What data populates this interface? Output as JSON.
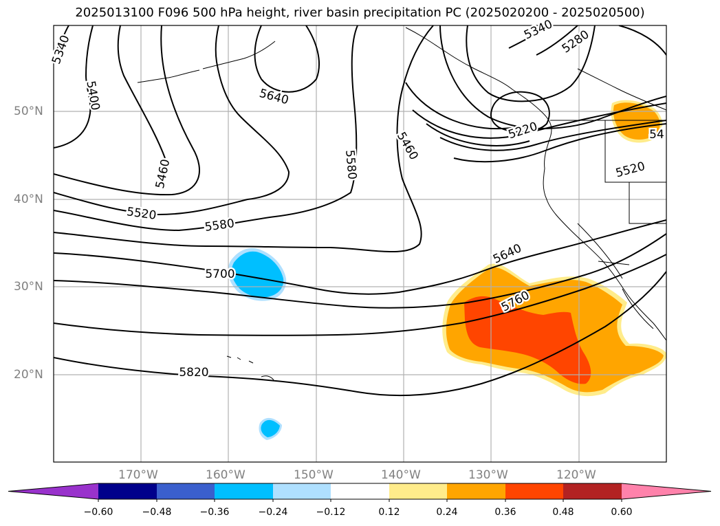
{
  "title": "2025013100 F096 500 hPa height, river basin precipitation PC (2025020200 - 2025020500)",
  "lat_labels": [
    {
      "text": "50°N",
      "lat": 50
    },
    {
      "text": "40°N",
      "lat": 40
    },
    {
      "text": "30°N",
      "lat": 30
    },
    {
      "text": "20°N",
      "lat": 20
    }
  ],
  "lon_labels": [
    {
      "text": "170°W",
      "lon": -170
    },
    {
      "text": "160°W",
      "lon": -160
    },
    {
      "text": "150°W",
      "lon": -150
    },
    {
      "text": "140°W",
      "lon": -140
    },
    {
      "text": "130°W",
      "lon": -130
    },
    {
      "text": "120°W",
      "lon": -120
    }
  ],
  "contour_labels": [
    "5340",
    "5400",
    "5460",
    "5520",
    "5580",
    "5640",
    "5700",
    "5760",
    "5820",
    "5340",
    "5280",
    "5220",
    "5460",
    "5580",
    "5640",
    "5520",
    "54"
  ],
  "colorbar": {
    "colors": [
      "#9932cc",
      "#00008b",
      "#3a5fcd",
      "#00bfff",
      "#afe0ff",
      "#ffffff",
      "#ffec8b",
      "#ffa500",
      "#ff4500",
      "#b22222",
      "#ff82ab"
    ],
    "ticks": [
      "−0.60",
      "−0.48",
      "−0.36",
      "−0.24",
      "−0.12",
      "0.12",
      "0.24",
      "0.36",
      "0.48",
      "0.60"
    ]
  }
}
